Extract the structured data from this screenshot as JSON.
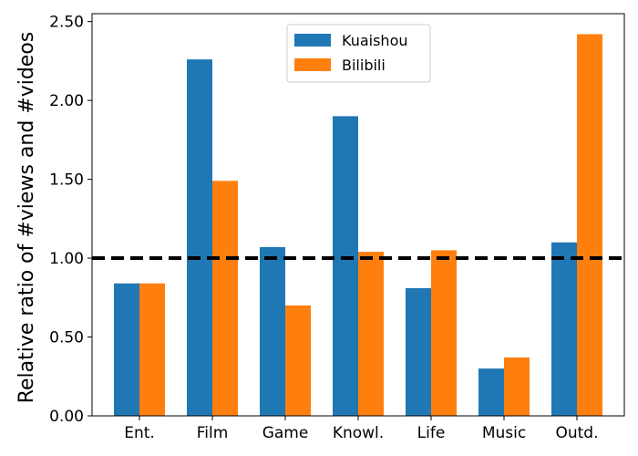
{
  "chart_data": {
    "type": "bar",
    "title": "",
    "xlabel": "",
    "ylabel": "Relative ratio of #views and #videos",
    "categories": [
      "Ent.",
      "Film",
      "Game",
      "Knowl.",
      "Life",
      "Music",
      "Outd."
    ],
    "series": [
      {
        "name": "Kuaishou",
        "color": "#1f77b4",
        "values": [
          0.84,
          2.26,
          1.07,
          1.9,
          0.81,
          0.3,
          1.1
        ]
      },
      {
        "name": "Bilibili",
        "color": "#ff7f0e",
        "values": [
          0.84,
          1.49,
          0.7,
          1.04,
          1.05,
          0.37,
          2.42
        ]
      }
    ],
    "yticks": [
      "0.00",
      "0.50",
      "1.00",
      "1.50",
      "2.00",
      "2.50"
    ],
    "ylim": [
      0,
      2.55
    ],
    "reference_line": {
      "y": 1.0,
      "style": "dashed",
      "color": "#000000"
    },
    "grid": false,
    "legend_position": "top-center"
  }
}
